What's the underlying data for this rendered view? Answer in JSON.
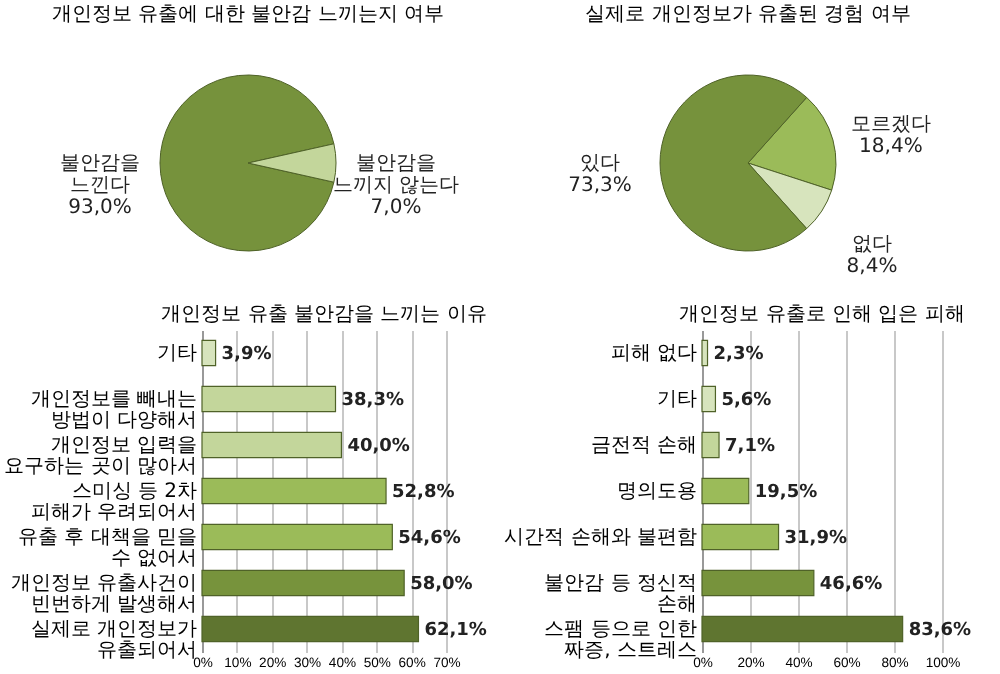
{
  "chart_data": [
    {
      "type": "pie",
      "title": "개인정보 유출에 대한 불안감 느끼는지 여부",
      "categories": [
        "불안감을 느낀다",
        "불안감을 느끼지 않는다"
      ],
      "values": [
        93.0,
        7.0
      ],
      "value_labels": [
        "93,0%",
        "7,0%"
      ],
      "colors": [
        "#76923c",
        "#c3d69b"
      ],
      "legend": false
    },
    {
      "type": "pie",
      "title": "실제로 개인정보가 유출된 경험 여부",
      "categories": [
        "모르겠다",
        "없다",
        "있다"
      ],
      "values": [
        18.4,
        8.4,
        73.3
      ],
      "value_labels": [
        "18,4%",
        "8,4%",
        "73,3%"
      ],
      "colors": [
        "#9bbb59",
        "#d7e4bd",
        "#76923c"
      ],
      "legend": false
    },
    {
      "type": "bar",
      "orientation": "horizontal",
      "title": "개인정보 유출 불안감을 느끼는 이유",
      "categories": [
        "기타",
        "개인정보를 빼내는 방법이 다양해서",
        "개인정보 입력을 요구하는 곳이 많아서",
        "스미싱 등 2차 피해가 우려되어서",
        "유출 후 대책을 믿을 수 없어서",
        "개인정보 유출사건이 빈번하게 발생해서",
        "실제로 개인정보가 유출되어서"
      ],
      "values": [
        3.9,
        38.3,
        40.0,
        52.8,
        54.6,
        58.0,
        62.1
      ],
      "value_labels": [
        "3,9%",
        "38,3%",
        "40,0%",
        "52,8%",
        "54,6%",
        "58,0%",
        "62,1%"
      ],
      "colors": [
        "#d7e4bd",
        "#c3d69b",
        "#c3d69b",
        "#9bbb59",
        "#9bbb59",
        "#77933c",
        "#5f7530"
      ],
      "xlim": [
        0,
        70
      ],
      "xticks": [
        {
          "value": 0,
          "label": "0%"
        },
        {
          "value": 10,
          "label": "10%"
        },
        {
          "value": 20,
          "label": "20%"
        },
        {
          "value": 30,
          "label": "30%"
        },
        {
          "value": 40,
          "label": "40%"
        },
        {
          "value": 50,
          "label": "50%"
        },
        {
          "value": 60,
          "label": "60%"
        },
        {
          "value": 70,
          "label": "70%"
        }
      ],
      "grid": "x",
      "legend": false
    },
    {
      "type": "bar",
      "orientation": "horizontal",
      "title": "개인정보 유출로 인해 입은 피해",
      "categories": [
        "피해 없다",
        "기타",
        "금전적 손해",
        "명의도용",
        "시간적 손해와 불편함",
        "불안감 등 정신적 손해",
        "스팸 등으로 인한 짜증, 스트레스"
      ],
      "values": [
        2.3,
        5.6,
        7.1,
        19.5,
        31.9,
        46.6,
        83.6
      ],
      "value_labels": [
        "2,3%",
        "5,6%",
        "7,1%",
        "19,5%",
        "31,9%",
        "46,6%",
        "83,6%"
      ],
      "colors": [
        "#d7e4bd",
        "#d7e4bd",
        "#c3d69b",
        "#9bbb59",
        "#9bbb59",
        "#77933c",
        "#5f7530"
      ],
      "xlim": [
        0,
        100
      ],
      "xticks": [
        {
          "value": 0,
          "label": "0%"
        },
        {
          "value": 20,
          "label": "20%"
        },
        {
          "value": 40,
          "label": "40%"
        },
        {
          "value": 60,
          "label": "60%"
        },
        {
          "value": 80,
          "label": "80%"
        },
        {
          "value": 100,
          "label": "100%"
        }
      ],
      "grid": "x",
      "legend": false
    }
  ]
}
